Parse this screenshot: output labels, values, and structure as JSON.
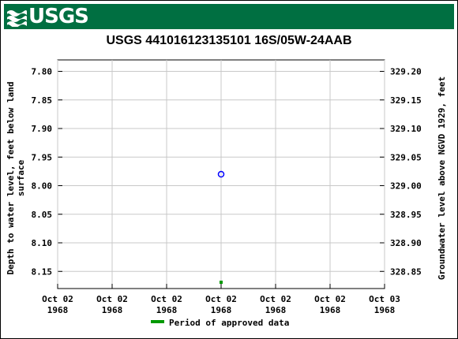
{
  "header": {
    "logo_text": "USGS",
    "logo_icon": "usgs-wave-icon",
    "brand_color": "#006f41"
  },
  "chart_data": {
    "type": "scatter",
    "title": "USGS 441016123135101 16S/05W-24AAB",
    "ylabel_left_line1": "Depth to water level, feet below land",
    "ylabel_left_line2": "surface",
    "ylabel_right": "Groundwater level above NGVD 1929, feet",
    "y_left": {
      "min": 7.78,
      "max": 8.18,
      "ticks": [
        "7.80",
        "7.85",
        "7.90",
        "7.95",
        "8.00",
        "8.05",
        "8.10",
        "8.15"
      ],
      "inverted": true
    },
    "y_right": {
      "ticks": [
        "329.20",
        "329.15",
        "329.10",
        "329.05",
        "329.00",
        "328.95",
        "328.90",
        "328.85"
      ]
    },
    "x_ticks": [
      {
        "line1": "Oct 02",
        "line2": "1968"
      },
      {
        "line1": "Oct 02",
        "line2": "1968"
      },
      {
        "line1": "Oct 02",
        "line2": "1968"
      },
      {
        "line1": "Oct 02",
        "line2": "1968"
      },
      {
        "line1": "Oct 02",
        "line2": "1968"
      },
      {
        "line1": "Oct 02",
        "line2": "1968"
      },
      {
        "line1": "Oct 03",
        "line2": "1968"
      }
    ],
    "x_range": [
      "1968-10-02T00:00",
      "1968-10-03T00:00"
    ],
    "series": [
      {
        "point": {
          "x": "1968-10-02T12:00",
          "y": 7.98
        },
        "marker": "open-circle",
        "color": "#0000ff"
      }
    ],
    "approved_marker": {
      "x": "1968-10-02T12:00",
      "color": "#009900"
    },
    "legend": {
      "label": "Period of approved data",
      "color": "#009900",
      "placement": "bottom-center"
    },
    "grid": true
  }
}
